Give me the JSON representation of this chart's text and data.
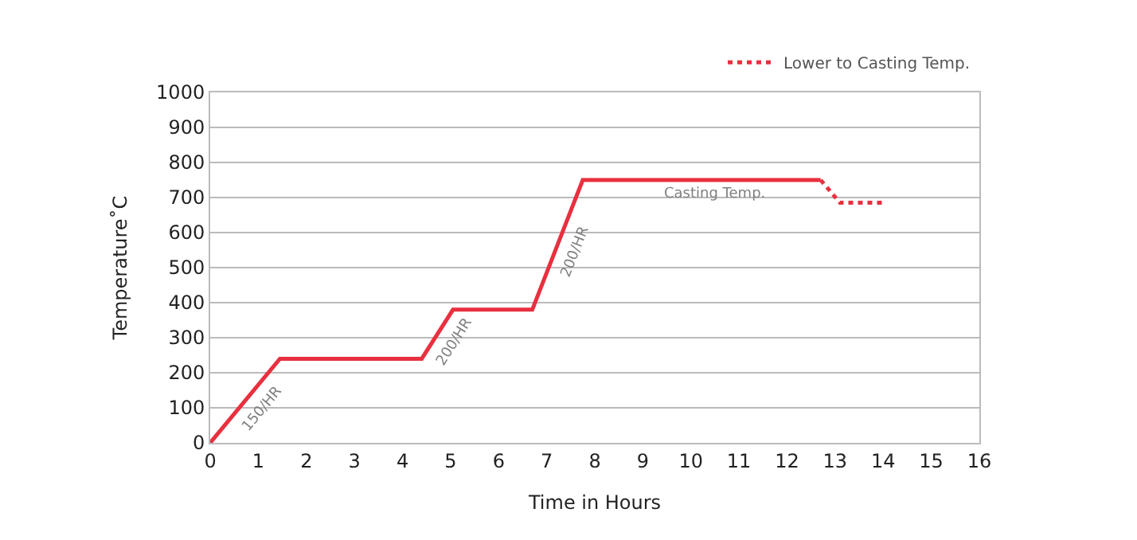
{
  "chart_data": {
    "type": "line",
    "xlabel": "Time in Hours",
    "ylabel": "Temperature˚C",
    "xlim": [
      0,
      16
    ],
    "xticks": [
      0,
      1,
      2,
      3,
      4,
      5,
      6,
      7,
      8,
      9,
      10,
      11,
      12,
      13,
      14,
      15,
      16
    ],
    "ylim": [
      0,
      1000
    ],
    "yticks": [
      0,
      100,
      200,
      300,
      400,
      500,
      600,
      700,
      800,
      900,
      1000
    ],
    "grid": "y",
    "legend": "top right",
    "marker": "none",
    "series": [
      {
        "color": "#e8303f",
        "line_style": "solid",
        "x": [
          0,
          1.45,
          4.4,
          5.05,
          6.7,
          7.75,
          12.7
        ],
        "values": [
          0,
          240,
          240,
          380,
          380,
          750,
          750
        ]
      },
      {
        "name": "Lower to Casting Temp.",
        "color": "#e8303f",
        "line_style": "dotted",
        "x": [
          12.7,
          13.1,
          14.05
        ],
        "values": [
          750,
          685,
          685
        ]
      }
    ],
    "annotations": [
      {
        "text": "150/HR",
        "x": 0.725,
        "y": 120
      },
      {
        "text": "200/HR",
        "x": 4.725,
        "y": 310
      },
      {
        "text": "200/HR",
        "x": 7.225,
        "y": 565
      },
      {
        "text": "Casting Temp.",
        "x": 10.5,
        "y": 750
      }
    ]
  }
}
